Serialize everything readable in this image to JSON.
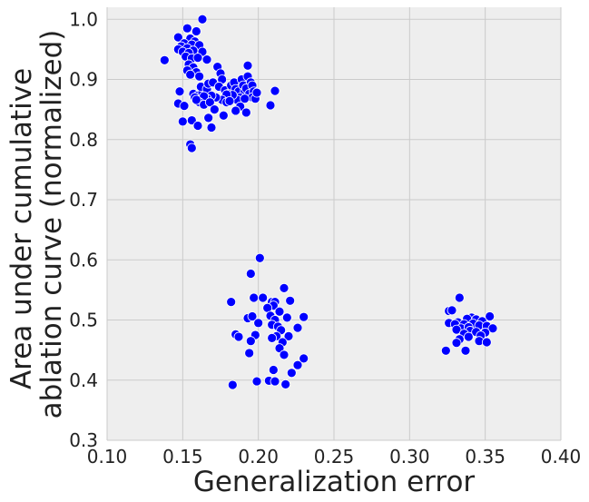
{
  "chart_data": {
    "type": "scatter",
    "title": "",
    "xlabel": "Generalization error",
    "ylabel_lines": [
      "Area under cumulative",
      "ablation curve (normalized)"
    ],
    "xlim": [
      0.1,
      0.4
    ],
    "ylim": [
      0.3,
      1.02
    ],
    "xticks": [
      0.1,
      0.15,
      0.2,
      0.25,
      0.3,
      0.35,
      0.4
    ],
    "xtick_labels": [
      "0.10",
      "0.15",
      "0.20",
      "0.25",
      "0.30",
      "0.35",
      "0.40"
    ],
    "yticks": [
      0.3,
      0.4,
      0.5,
      0.6,
      0.7,
      0.8,
      0.9,
      1.0
    ],
    "ytick_labels": [
      "0.3",
      "0.4",
      "0.5",
      "0.6",
      "0.7",
      "0.8",
      "0.9",
      "1.0"
    ],
    "grid": true,
    "legend": "none",
    "colors": {
      "background": "#eeeeee",
      "grid": "#cbcbcb",
      "marker": "#0000ff",
      "marker_edge": "#ffffff",
      "text": "#222222"
    },
    "points": [
      [
        0.163,
        1.0
      ],
      [
        0.153,
        0.985
      ],
      [
        0.159,
        0.98
      ],
      [
        0.147,
        0.97
      ],
      [
        0.155,
        0.968
      ],
      [
        0.158,
        0.963
      ],
      [
        0.151,
        0.96
      ],
      [
        0.156,
        0.958
      ],
      [
        0.149,
        0.955
      ],
      [
        0.153,
        0.952
      ],
      [
        0.161,
        0.957
      ],
      [
        0.147,
        0.95
      ],
      [
        0.157,
        0.948
      ],
      [
        0.15,
        0.946
      ],
      [
        0.154,
        0.944
      ],
      [
        0.163,
        0.946
      ],
      [
        0.138,
        0.932
      ],
      [
        0.152,
        0.938
      ],
      [
        0.156,
        0.935
      ],
      [
        0.16,
        0.936
      ],
      [
        0.166,
        0.933
      ],
      [
        0.154,
        0.925
      ],
      [
        0.157,
        0.92
      ],
      [
        0.153,
        0.915
      ],
      [
        0.159,
        0.912
      ],
      [
        0.155,
        0.908
      ],
      [
        0.161,
        0.905
      ],
      [
        0.148,
        0.88
      ],
      [
        0.157,
        0.876
      ],
      [
        0.16,
        0.873
      ],
      [
        0.163,
        0.878
      ],
      [
        0.162,
        0.888
      ],
      [
        0.166,
        0.884
      ],
      [
        0.167,
        0.893
      ],
      [
        0.17,
        0.895
      ],
      [
        0.173,
        0.921
      ],
      [
        0.175,
        0.91
      ],
      [
        0.176,
        0.9
      ],
      [
        0.174,
        0.888
      ],
      [
        0.178,
        0.882
      ],
      [
        0.18,
        0.876
      ],
      [
        0.182,
        0.89
      ],
      [
        0.184,
        0.895
      ],
      [
        0.185,
        0.884
      ],
      [
        0.187,
        0.88
      ],
      [
        0.189,
        0.9
      ],
      [
        0.19,
        0.89
      ],
      [
        0.191,
        0.88
      ],
      [
        0.188,
        0.87
      ],
      [
        0.186,
        0.866
      ],
      [
        0.183,
        0.874
      ],
      [
        0.193,
        0.923
      ],
      [
        0.193,
        0.905
      ],
      [
        0.195,
        0.895
      ],
      [
        0.192,
        0.885
      ],
      [
        0.194,
        0.876
      ],
      [
        0.196,
        0.89
      ],
      [
        0.197,
        0.88
      ],
      [
        0.196,
        0.87
      ],
      [
        0.191,
        0.868
      ],
      [
        0.188,
        0.855
      ],
      [
        0.185,
        0.848
      ],
      [
        0.179,
        0.875
      ],
      [
        0.176,
        0.866
      ],
      [
        0.172,
        0.87
      ],
      [
        0.169,
        0.873
      ],
      [
        0.166,
        0.868
      ],
      [
        0.164,
        0.872
      ],
      [
        0.161,
        0.862
      ],
      [
        0.158,
        0.87
      ],
      [
        0.159,
        0.866
      ],
      [
        0.164,
        0.858
      ],
      [
        0.168,
        0.862
      ],
      [
        0.171,
        0.85
      ],
      [
        0.177,
        0.84
      ],
      [
        0.179,
        0.862
      ],
      [
        0.181,
        0.864
      ],
      [
        0.198,
        0.868
      ],
      [
        0.199,
        0.878
      ],
      [
        0.211,
        0.881
      ],
      [
        0.208,
        0.857
      ],
      [
        0.192,
        0.845
      ],
      [
        0.147,
        0.86
      ],
      [
        0.151,
        0.856
      ],
      [
        0.15,
        0.83
      ],
      [
        0.156,
        0.832
      ],
      [
        0.16,
        0.823
      ],
      [
        0.167,
        0.836
      ],
      [
        0.169,
        0.82
      ],
      [
        0.155,
        0.792
      ],
      [
        0.156,
        0.786
      ],
      [
        0.201,
        0.603
      ],
      [
        0.195,
        0.577
      ],
      [
        0.217,
        0.553
      ],
      [
        0.182,
        0.53
      ],
      [
        0.197,
        0.537
      ],
      [
        0.203,
        0.537
      ],
      [
        0.209,
        0.53
      ],
      [
        0.211,
        0.53
      ],
      [
        0.221,
        0.532
      ],
      [
        0.21,
        0.524
      ],
      [
        0.206,
        0.52
      ],
      [
        0.214,
        0.514
      ],
      [
        0.193,
        0.503
      ],
      [
        0.196,
        0.506
      ],
      [
        0.208,
        0.507
      ],
      [
        0.23,
        0.505
      ],
      [
        0.219,
        0.504
      ],
      [
        0.211,
        0.5
      ],
      [
        0.2,
        0.495
      ],
      [
        0.209,
        0.492
      ],
      [
        0.213,
        0.489
      ],
      [
        0.226,
        0.487
      ],
      [
        0.215,
        0.483
      ],
      [
        0.185,
        0.476
      ],
      [
        0.187,
        0.472
      ],
      [
        0.198,
        0.475
      ],
      [
        0.212,
        0.473
      ],
      [
        0.22,
        0.473
      ],
      [
        0.195,
        0.465
      ],
      [
        0.209,
        0.47
      ],
      [
        0.216,
        0.463
      ],
      [
        0.214,
        0.453
      ],
      [
        0.217,
        0.442
      ],
      [
        0.194,
        0.445
      ],
      [
        0.23,
        0.436
      ],
      [
        0.226,
        0.425
      ],
      [
        0.21,
        0.417
      ],
      [
        0.222,
        0.412
      ],
      [
        0.199,
        0.398
      ],
      [
        0.207,
        0.399
      ],
      [
        0.211,
        0.398
      ],
      [
        0.218,
        0.393
      ],
      [
        0.183,
        0.392
      ],
      [
        0.333,
        0.537
      ],
      [
        0.326,
        0.515
      ],
      [
        0.328,
        0.516
      ],
      [
        0.353,
        0.506
      ],
      [
        0.341,
        0.504
      ],
      [
        0.338,
        0.502
      ],
      [
        0.344,
        0.501
      ],
      [
        0.326,
        0.495
      ],
      [
        0.332,
        0.496
      ],
      [
        0.348,
        0.498
      ],
      [
        0.33,
        0.493
      ],
      [
        0.336,
        0.493
      ],
      [
        0.342,
        0.494
      ],
      [
        0.346,
        0.491
      ],
      [
        0.351,
        0.49
      ],
      [
        0.334,
        0.486
      ],
      [
        0.339,
        0.488
      ],
      [
        0.355,
        0.486
      ],
      [
        0.331,
        0.484
      ],
      [
        0.34,
        0.482
      ],
      [
        0.344,
        0.48
      ],
      [
        0.35,
        0.479
      ],
      [
        0.336,
        0.477
      ],
      [
        0.347,
        0.474
      ],
      [
        0.339,
        0.472
      ],
      [
        0.333,
        0.468
      ],
      [
        0.346,
        0.465
      ],
      [
        0.351,
        0.463
      ],
      [
        0.331,
        0.462
      ],
      [
        0.324,
        0.449
      ],
      [
        0.337,
        0.449
      ]
    ]
  }
}
